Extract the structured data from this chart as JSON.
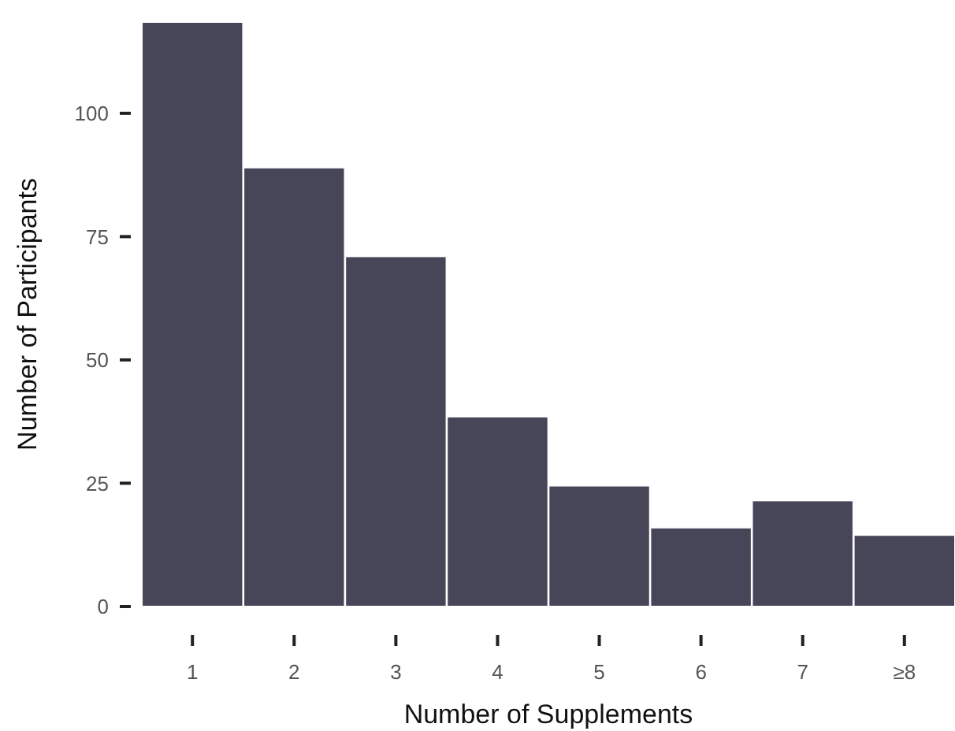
{
  "chart_data": {
    "type": "bar",
    "xlabel": "Number of Supplements",
    "ylabel": "Number of Participants",
    "categories": [
      "1",
      "2",
      "3",
      "4",
      "5",
      "6",
      "7",
      "≥8"
    ],
    "values": [
      118.5,
      89,
      71,
      38.5,
      24.5,
      16,
      21.5,
      14.5
    ],
    "color": "#474558",
    "ylim": [
      0,
      118.5
    ],
    "yticks": [
      0,
      25,
      50,
      75,
      100
    ],
    "grid": false
  }
}
